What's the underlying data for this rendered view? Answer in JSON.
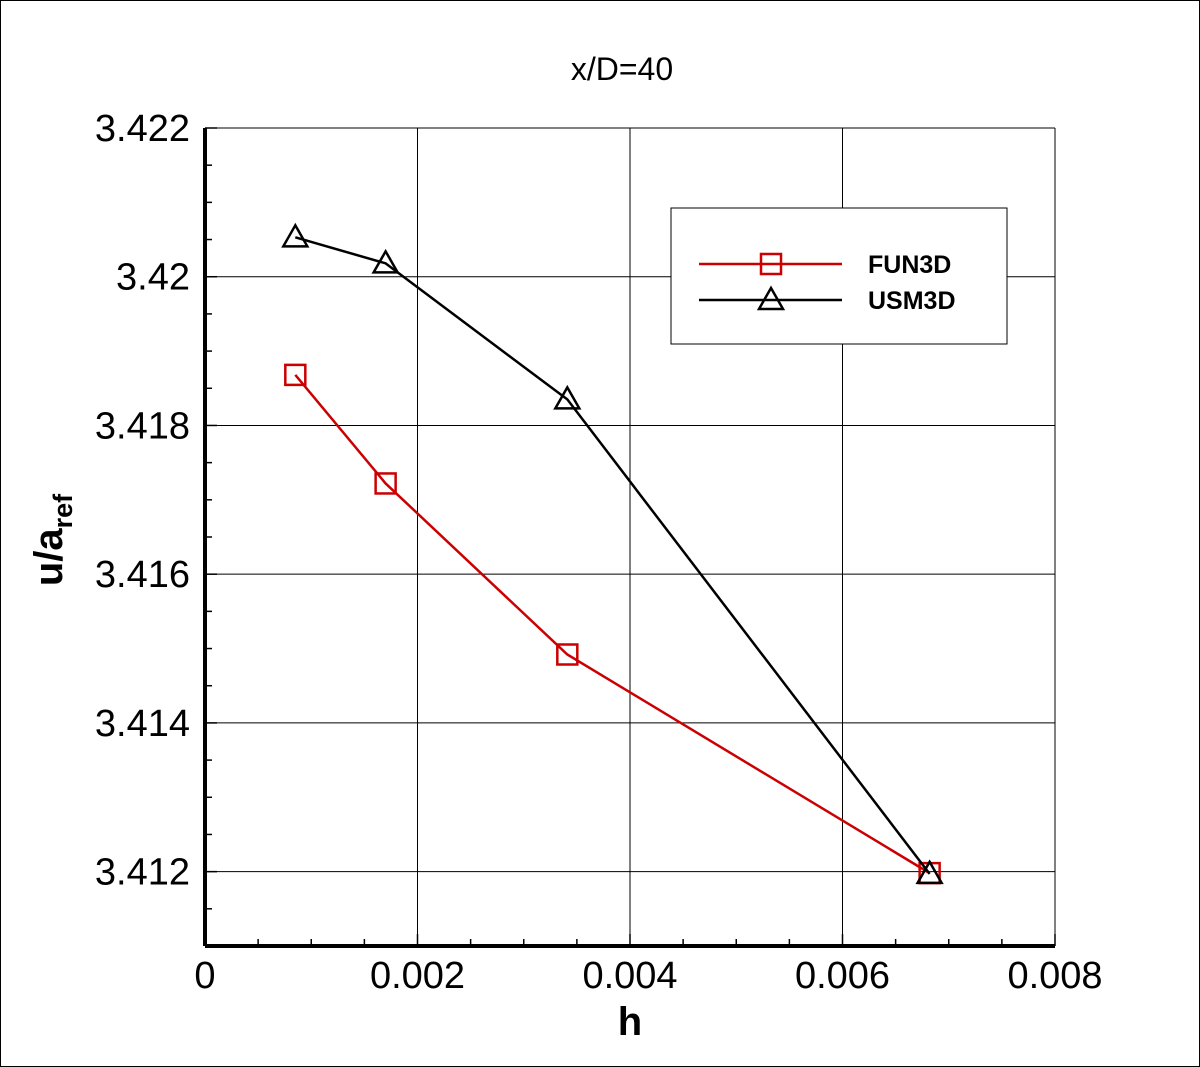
{
  "chart_data": {
    "type": "line",
    "title": "x/D=40",
    "xlabel": "h",
    "ylabel": "u/a",
    "ylabel_sub": "ref",
    "xlim": [
      0,
      0.008
    ],
    "ylim": [
      3.411,
      3.422
    ],
    "x_ticks": [
      0,
      0.002,
      0.004,
      0.006,
      0.008
    ],
    "x_tick_labels": [
      "0",
      "0.002",
      "0.004",
      "0.006",
      "0.008"
    ],
    "y_ticks": [
      3.412,
      3.414,
      3.416,
      3.418,
      3.42,
      3.422
    ],
    "y_tick_labels": [
      "3.412",
      "3.414",
      "3.416",
      "3.418",
      "3.42",
      "3.422"
    ],
    "grid": true,
    "legend_position": "top-right",
    "series": [
      {
        "name": "FUN3D",
        "color": "#cc0000",
        "marker": "square",
        "x": [
          0.00085,
          0.0017,
          0.00341,
          0.00682
        ],
        "y": [
          3.41868,
          3.41722,
          3.41492,
          3.41198
        ]
      },
      {
        "name": "USM3D",
        "color": "#000000",
        "marker": "triangle",
        "x": [
          0.00085,
          0.0017,
          0.00341,
          0.00682
        ],
        "y": [
          3.42053,
          3.42018,
          3.41835,
          3.41197
        ]
      }
    ]
  }
}
